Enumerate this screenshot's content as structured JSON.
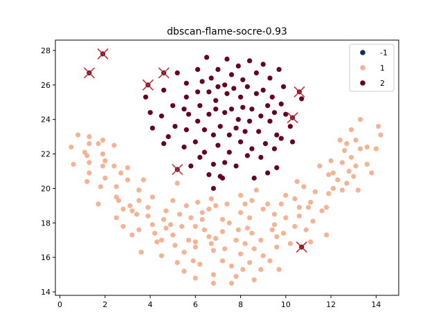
{
  "chart_data": {
    "type": "scatter",
    "title": "dbscan-flame-socre-0.93",
    "xlabel": "",
    "ylabel": "",
    "xlim": [
      -0.2,
      15.0
    ],
    "ylim": [
      13.8,
      28.6
    ],
    "xticks": [
      "0",
      "2",
      "4",
      "6",
      "8",
      "10",
      "12",
      "14"
    ],
    "xtick_values": [
      0,
      2,
      4,
      6,
      8,
      10,
      12,
      14
    ],
    "yticks": [
      "14",
      "16",
      "18",
      "20",
      "22",
      "24",
      "26",
      "28"
    ],
    "ytick_values": [
      14,
      16,
      18,
      20,
      22,
      24,
      26,
      28
    ],
    "grid": false,
    "legend_position": "top-right",
    "outlier_marker": "red x",
    "series": [
      {
        "name": "-1",
        "color": "#0f2d5c",
        "points": [
          [
            1.9,
            27.8
          ],
          [
            1.3,
            26.7
          ],
          [
            4.6,
            26.7
          ],
          [
            3.9,
            26.0
          ],
          [
            10.6,
            25.6
          ],
          [
            10.3,
            24.1
          ],
          [
            5.2,
            21.1
          ],
          [
            10.7,
            16.6
          ]
        ]
      },
      {
        "name": "1",
        "color": "#f5b393",
        "points": [
          [
            0.5,
            22.4
          ],
          [
            0.6,
            21.4
          ],
          [
            0.8,
            23.1
          ],
          [
            1.1,
            22.1
          ],
          [
            1.2,
            20.4
          ],
          [
            1.3,
            23.0
          ],
          [
            1.3,
            21.5
          ],
          [
            1.3,
            20.9
          ],
          [
            1.3,
            22.6
          ],
          [
            1.7,
            22.6
          ],
          [
            1.7,
            19.1
          ],
          [
            1.8,
            20.1
          ],
          [
            1.9,
            22.0
          ],
          [
            1.9,
            21.3
          ],
          [
            1.9,
            22.8
          ],
          [
            2.0,
            20.6
          ],
          [
            2.4,
            22.5
          ],
          [
            2.4,
            21.3
          ],
          [
            2.5,
            20.1
          ],
          [
            2.5,
            19.5
          ],
          [
            2.5,
            18.3
          ],
          [
            2.6,
            19.3
          ],
          [
            2.8,
            17.8
          ],
          [
            2.8,
            18.8
          ],
          [
            3.0,
            21.2
          ],
          [
            3.0,
            20.5
          ],
          [
            3.1,
            19.0
          ],
          [
            3.2,
            17.3
          ],
          [
            3.4,
            18.5
          ],
          [
            3.5,
            17.6
          ],
          [
            3.5,
            19.9
          ],
          [
            3.5,
            19.3
          ],
          [
            3.6,
            16.3
          ],
          [
            3.7,
            20.5
          ],
          [
            3.9,
            18.9
          ],
          [
            3.9,
            18.4
          ],
          [
            4.1,
            17.9
          ],
          [
            4.2,
            17.4
          ],
          [
            4.3,
            16.9
          ],
          [
            4.5,
            17.0
          ],
          [
            4.5,
            16.1
          ],
          [
            4.6,
            18.2
          ],
          [
            4.7,
            18.7
          ],
          [
            4.7,
            17.7
          ],
          [
            5.0,
            19.3
          ],
          [
            5.0,
            17.3
          ],
          [
            5.1,
            16.7
          ],
          [
            5.2,
            15.7
          ],
          [
            5.2,
            20.3
          ],
          [
            5.3,
            18.5
          ],
          [
            5.4,
            17.8
          ],
          [
            5.5,
            16.3
          ],
          [
            5.5,
            15.2
          ],
          [
            5.6,
            19.0
          ],
          [
            5.7,
            17.0
          ],
          [
            5.8,
            18.3
          ],
          [
            6.0,
            14.8
          ],
          [
            6.0,
            16.6
          ],
          [
            6.0,
            17.8
          ],
          [
            6.0,
            16.9
          ],
          [
            6.1,
            19.2
          ],
          [
            6.2,
            15.6
          ],
          [
            6.3,
            18.2
          ],
          [
            6.4,
            17.6
          ],
          [
            6.6,
            18.8
          ],
          [
            6.6,
            17.2
          ],
          [
            6.7,
            19.4
          ],
          [
            6.7,
            16.8
          ],
          [
            6.8,
            16.4
          ],
          [
            6.8,
            15.0
          ],
          [
            6.8,
            14.5
          ],
          [
            6.9,
            17.1
          ],
          [
            6.9,
            19.0
          ],
          [
            7.2,
            17.5
          ],
          [
            7.2,
            18.2
          ],
          [
            7.2,
            15.8
          ],
          [
            7.3,
            16.5
          ],
          [
            7.4,
            19.1
          ],
          [
            7.6,
            15.5
          ],
          [
            7.6,
            14.5
          ],
          [
            7.8,
            17.0
          ],
          [
            7.9,
            17.6
          ],
          [
            8.0,
            19.6
          ],
          [
            8.0,
            18.6
          ],
          [
            8.0,
            16.2
          ],
          [
            8.1,
            15.3
          ],
          [
            8.2,
            16.8
          ],
          [
            8.3,
            17.7
          ],
          [
            8.4,
            18.3
          ],
          [
            8.4,
            15.7
          ],
          [
            8.5,
            19.3
          ],
          [
            8.5,
            17.4
          ],
          [
            8.6,
            16.5
          ],
          [
            8.6,
            14.7
          ],
          [
            8.7,
            19.9
          ],
          [
            8.9,
            17.0
          ],
          [
            8.9,
            15.3
          ],
          [
            9.0,
            18.8
          ],
          [
            9.0,
            16.1
          ],
          [
            9.2,
            19.1
          ],
          [
            9.3,
            15.8
          ],
          [
            9.4,
            17.6
          ],
          [
            9.5,
            18.5
          ],
          [
            9.6,
            16.6
          ],
          [
            9.6,
            17.2
          ],
          [
            9.7,
            15.3
          ],
          [
            9.8,
            19.1
          ],
          [
            9.9,
            17.4
          ],
          [
            10.0,
            19.6
          ],
          [
            10.0,
            18.3
          ],
          [
            10.2,
            16.8
          ],
          [
            10.4,
            17.8
          ],
          [
            10.4,
            19.4
          ],
          [
            10.6,
            18.9
          ],
          [
            10.6,
            18.4
          ],
          [
            10.8,
            20.1
          ],
          [
            10.9,
            17.6
          ],
          [
            11.1,
            19.2
          ],
          [
            11.1,
            16.9
          ],
          [
            11.2,
            18.1
          ],
          [
            11.3,
            19.8
          ],
          [
            11.5,
            21.3
          ],
          [
            11.6,
            18.7
          ],
          [
            11.8,
            18.9
          ],
          [
            11.8,
            17.3
          ],
          [
            11.9,
            19.7
          ],
          [
            12.0,
            21.6
          ],
          [
            12.1,
            20.9
          ],
          [
            12.1,
            20.0
          ],
          [
            12.3,
            20.5
          ],
          [
            12.4,
            22.8
          ],
          [
            12.5,
            21.5
          ],
          [
            12.5,
            19.9
          ],
          [
            12.6,
            22.2
          ],
          [
            12.7,
            20.3
          ],
          [
            12.8,
            21.0
          ],
          [
            12.9,
            23.4
          ],
          [
            12.9,
            21.8
          ],
          [
            13.0,
            20.7
          ],
          [
            13.1,
            22.8
          ],
          [
            13.1,
            21.3
          ],
          [
            13.2,
            19.9
          ],
          [
            13.3,
            24.0
          ],
          [
            13.3,
            22.3
          ],
          [
            13.6,
            22.4
          ],
          [
            13.6,
            21.4
          ],
          [
            13.8,
            20.9
          ],
          [
            14.0,
            22.3
          ],
          [
            14.1,
            23.6
          ],
          [
            14.2,
            23.1
          ],
          [
            1.2,
            21.9
          ],
          [
            2.0,
            21.6
          ],
          [
            10.5,
            20.4
          ],
          [
            3.2,
            18.7
          ],
          [
            4.9,
            17.9
          ],
          [
            6.3,
            18.6
          ],
          [
            9.5,
            17.9
          ],
          [
            11.0,
            18.9
          ],
          [
            7.5,
            18.0
          ],
          [
            8.2,
            19.1
          ],
          [
            4.1,
            19.5
          ],
          [
            11.9,
            20.8
          ],
          [
            2.7,
            20.9
          ],
          [
            12.7,
            22.6
          ],
          [
            5.9,
            15.8
          ],
          [
            7.8,
            14.9
          ]
        ]
      },
      {
        "name": "2",
        "color": "#650022",
        "points": [
          [
            3.8,
            25.3
          ],
          [
            4.0,
            24.4
          ],
          [
            4.1,
            23.5
          ],
          [
            4.5,
            24.2
          ],
          [
            4.6,
            22.6
          ],
          [
            4.6,
            25.7
          ],
          [
            5.0,
            24.8
          ],
          [
            5.1,
            23.6
          ],
          [
            5.2,
            26.7
          ],
          [
            5.5,
            24.6
          ],
          [
            5.5,
            22.4
          ],
          [
            5.6,
            26.1
          ],
          [
            5.6,
            25.3
          ],
          [
            5.6,
            23.4
          ],
          [
            5.7,
            24.3
          ],
          [
            6.0,
            22.7
          ],
          [
            6.1,
            25.6
          ],
          [
            6.1,
            26.9
          ],
          [
            6.1,
            23.9
          ],
          [
            6.2,
            21.8
          ],
          [
            6.2,
            24.8
          ],
          [
            6.3,
            26.2
          ],
          [
            6.4,
            22.1
          ],
          [
            6.4,
            23.4
          ],
          [
            6.5,
            27.6
          ],
          [
            6.6,
            24.3
          ],
          [
            6.6,
            25.6
          ],
          [
            6.6,
            20.8
          ],
          [
            6.7,
            26.4
          ],
          [
            6.8,
            21.4
          ],
          [
            6.8,
            23.1
          ],
          [
            6.9,
            25.1
          ],
          [
            6.9,
            24.6
          ],
          [
            7.0,
            26.9
          ],
          [
            7.0,
            25.9
          ],
          [
            7.0,
            22.5
          ],
          [
            7.1,
            23.6
          ],
          [
            7.1,
            20.7
          ],
          [
            7.3,
            26.0
          ],
          [
            7.3,
            24.4
          ],
          [
            7.3,
            21.5
          ],
          [
            7.4,
            27.5
          ],
          [
            7.4,
            25.5
          ],
          [
            7.5,
            23.1
          ],
          [
            7.5,
            22.1
          ],
          [
            7.6,
            26.6
          ],
          [
            7.6,
            24.6
          ],
          [
            7.7,
            25.8
          ],
          [
            7.8,
            23.5
          ],
          [
            7.8,
            21.3
          ],
          [
            7.9,
            27.1
          ],
          [
            7.9,
            24.0
          ],
          [
            8.0,
            22.7
          ],
          [
            8.0,
            25.3
          ],
          [
            8.1,
            26.3
          ],
          [
            8.1,
            24.7
          ],
          [
            8.2,
            23.3
          ],
          [
            8.3,
            21.9
          ],
          [
            8.3,
            25.9
          ],
          [
            8.4,
            27.4
          ],
          [
            8.4,
            23.9
          ],
          [
            8.5,
            24.6
          ],
          [
            8.5,
            22.3
          ],
          [
            8.6,
            20.6
          ],
          [
            8.7,
            25.5
          ],
          [
            8.7,
            26.7
          ],
          [
            8.8,
            23.3
          ],
          [
            8.9,
            24.2
          ],
          [
            8.9,
            21.8
          ],
          [
            9.0,
            25.7
          ],
          [
            9.0,
            27.2
          ],
          [
            9.1,
            22.6
          ],
          [
            9.2,
            24.8
          ],
          [
            9.3,
            26.4
          ],
          [
            9.3,
            23.9
          ],
          [
            9.4,
            25.3
          ],
          [
            9.5,
            22.3
          ],
          [
            9.5,
            24.4
          ],
          [
            9.6,
            23.1
          ],
          [
            9.7,
            26.9
          ],
          [
            9.8,
            24.9
          ],
          [
            9.8,
            22.9
          ],
          [
            9.9,
            25.9
          ],
          [
            10.0,
            24.3
          ],
          [
            10.2,
            23.6
          ],
          [
            10.3,
            22.7
          ],
          [
            9.2,
            20.9
          ],
          [
            7.2,
            20.6
          ],
          [
            5.8,
            21.3
          ],
          [
            10.7,
            25.2
          ],
          [
            4.8,
            23.0
          ],
          [
            6.8,
            20.0
          ],
          [
            9.6,
            21.2
          ]
        ]
      }
    ]
  }
}
